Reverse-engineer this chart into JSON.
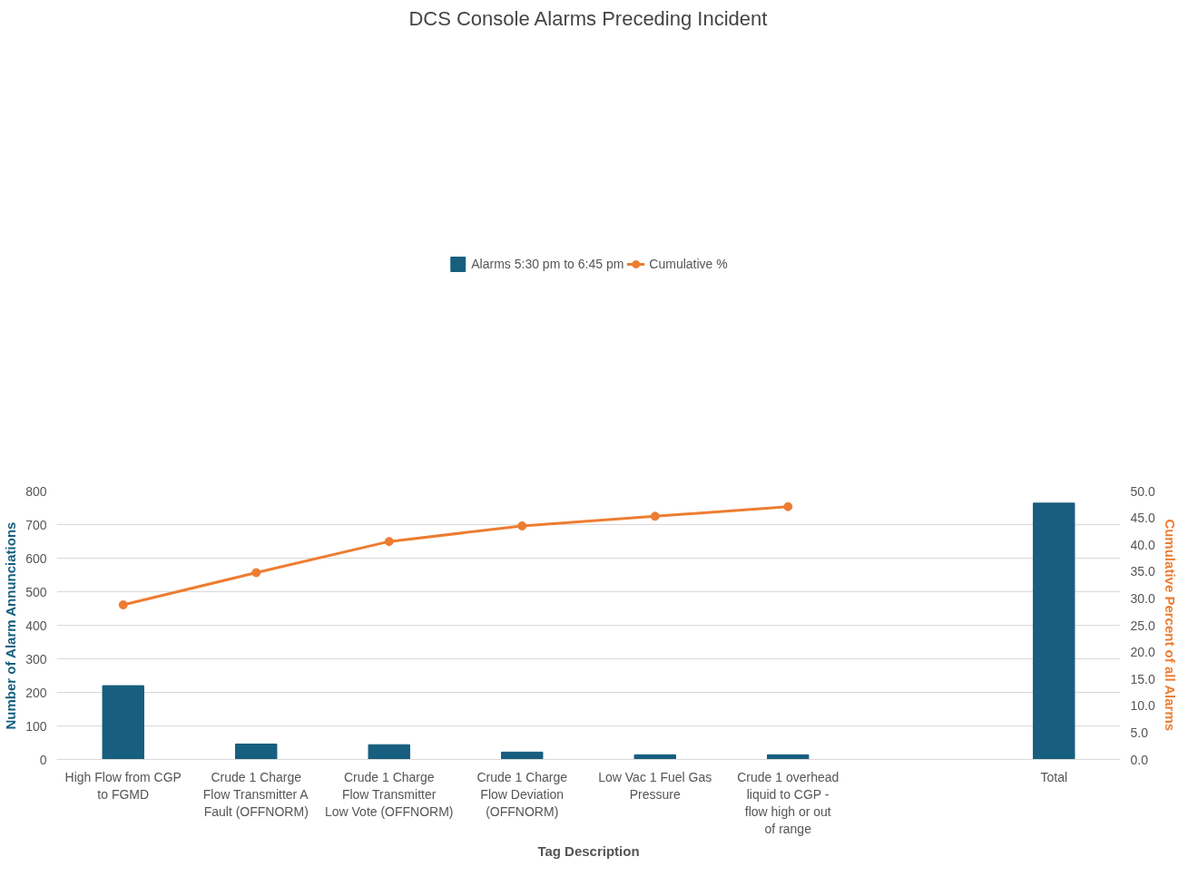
{
  "chart_data": {
    "type": "bar",
    "title": "DCS Console Alarms Preceding Incident",
    "xlabel": "Tag Description",
    "ylabel": "Number of Alarm Annunciations",
    "y2label": "Cumulative Percent of all Alarms",
    "categories": [
      "High Flow from CGP to FGMD",
      "Crude 1 Charge Flow Transmitter A Fault (OFFNORM)",
      "Crude 1 Charge Flow Transmitter Low Vote (OFFNORM)",
      "Crude 1 Charge Flow Deviation (OFFNORM)",
      "Low Vac 1 Fuel Gas Pressure",
      "Crude 1 overhead liquid to CGP - flow high or out of range",
      null,
      "Total"
    ],
    "series": [
      {
        "name": "Alarms 5:30 pm to 6:45 pm",
        "color": "#175e7f",
        "values": [
          220,
          46,
          44,
          22,
          14,
          14,
          null,
          764
        ]
      },
      {
        "name": "Cumulative %",
        "type": "line",
        "axis": "y2",
        "color": "#ed7d31",
        "values": [
          28.8,
          34.8,
          40.6,
          43.5,
          45.3,
          47.1,
          null,
          null
        ]
      }
    ],
    "ylim": [
      0,
      800
    ],
    "yticks": [
      0,
      100,
      200,
      300,
      400,
      500,
      600,
      700,
      800
    ],
    "y2lim": [
      0,
      50
    ],
    "y2ticks": [
      {
        "value": 0,
        "label": "0.0"
      },
      {
        "value": 5,
        "label": "5.0"
      },
      {
        "value": 10,
        "label": "10.0"
      },
      {
        "value": 15,
        "label": "15.0"
      },
      {
        "value": 20,
        "label": "20.0"
      },
      {
        "value": 25,
        "label": "25.0"
      },
      {
        "value": 30,
        "label": "30.0"
      },
      {
        "value": 35,
        "label": "35.0"
      },
      {
        "value": 40,
        "label": "40.0"
      },
      {
        "value": 45,
        "label": "45.0"
      },
      {
        "value": 50,
        "label": "50.0"
      }
    ],
    "grid": "y",
    "legend": "top",
    "marker": "circle"
  }
}
